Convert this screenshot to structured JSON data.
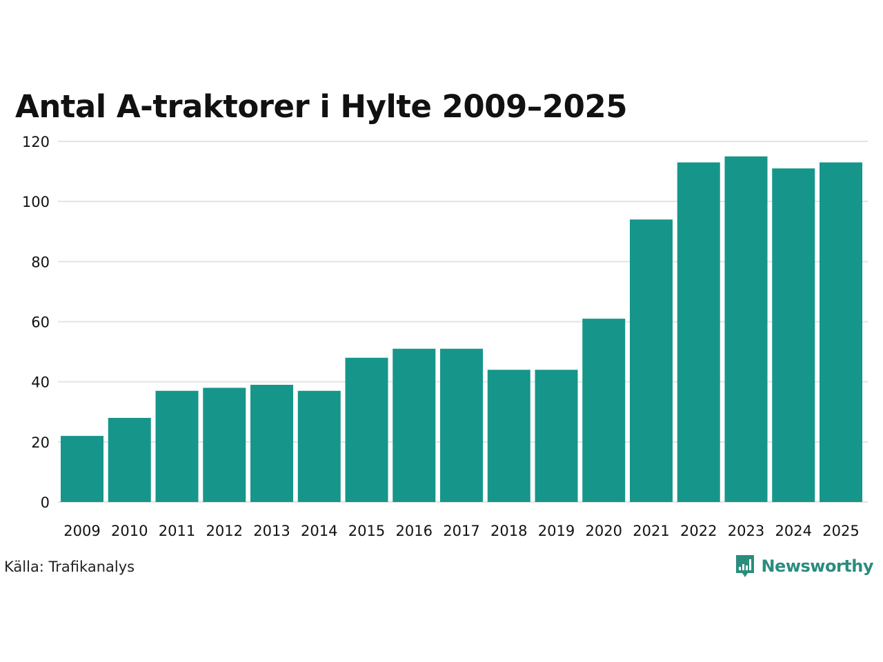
{
  "colors": {
    "bar": "#16968a",
    "grid": "#e3e3e3",
    "text": "#111111",
    "brand": "#2a8d7d"
  },
  "brand": {
    "name": "Newsworthy",
    "icon": "bar-chart-speech-bubble-icon"
  },
  "source": "Källa: Trafikanalys",
  "chart_data": {
    "type": "bar",
    "title": "Antal A-traktorer i Hylte 2009–2025",
    "xlabel": "",
    "ylabel": "",
    "ylim": [
      0,
      120
    ],
    "yticks": [
      0,
      20,
      40,
      60,
      80,
      100,
      120
    ],
    "grid": true,
    "legend": "none",
    "categories": [
      "2009",
      "2010",
      "2011",
      "2012",
      "2013",
      "2014",
      "2015",
      "2016",
      "2017",
      "2018",
      "2019",
      "2020",
      "2021",
      "2022",
      "2023",
      "2024",
      "2025"
    ],
    "values": [
      22,
      28,
      37,
      38,
      39,
      37,
      48,
      51,
      51,
      44,
      44,
      61,
      94,
      113,
      115,
      111,
      113
    ]
  }
}
